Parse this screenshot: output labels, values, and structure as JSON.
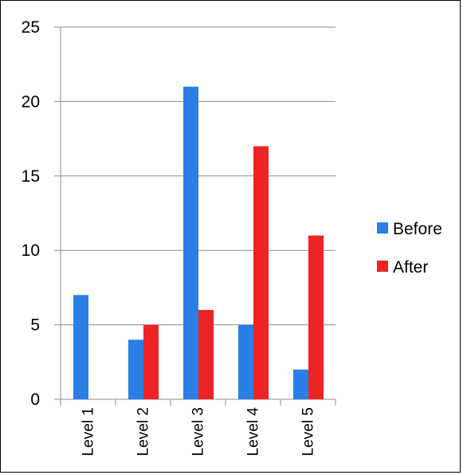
{
  "chart_data": {
    "type": "bar",
    "categories": [
      "Level 1",
      "Level 2",
      "Level 3",
      "Level 4",
      "Level 5"
    ],
    "series": [
      {
        "name": "Before",
        "color": "#2a7fe6",
        "values": [
          7,
          4,
          21,
          5,
          2
        ]
      },
      {
        "name": "After",
        "color": "#ee2424",
        "values": [
          0,
          5,
          6,
          17,
          11
        ]
      }
    ],
    "title": "",
    "xlabel": "",
    "ylabel": "",
    "ylim": [
      0,
      25
    ],
    "yticks": [
      0,
      5,
      10,
      15,
      20,
      25
    ],
    "grid": true,
    "legend_position": "right",
    "x_tick_label_rotation": "vertical"
  }
}
